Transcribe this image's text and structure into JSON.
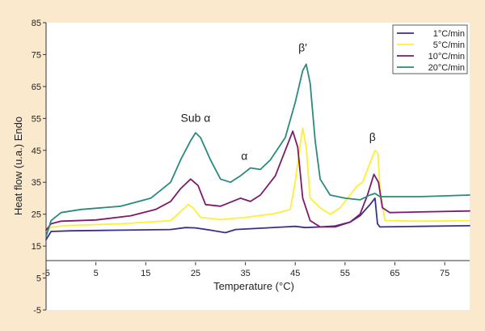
{
  "chart_data": {
    "type": "line",
    "xlabel": "Temperature (°C)",
    "ylabel": "Heat flow (u.a.) Endo",
    "xlim": [
      -5,
      80
    ],
    "ylim": [
      -5,
      85
    ],
    "x_ticks": [
      "-5",
      "5",
      "15",
      "25",
      "35",
      "45",
      "55",
      "65",
      "75"
    ],
    "y_ticks": [
      "85",
      "75",
      "65",
      "55",
      "45",
      "35",
      "25",
      "15",
      "5",
      "-5"
    ],
    "grid": false,
    "legend_position": "top-right",
    "annotations": [
      {
        "text": "Sub α",
        "x": 25,
        "y": 54
      },
      {
        "text": "α",
        "x": 34.8,
        "y": 42
      },
      {
        "text": "β′",
        "x": 46.5,
        "y": 76
      },
      {
        "text": "β",
        "x": 60.5,
        "y": 48
      }
    ],
    "series": [
      {
        "name": "1°C/min",
        "color": "#3b2f8a",
        "points": [
          [
            -5,
            17
          ],
          [
            -4,
            19.6
          ],
          [
            0,
            19.8
          ],
          [
            10,
            20
          ],
          [
            20,
            20.2
          ],
          [
            23,
            20.8
          ],
          [
            25,
            20.7
          ],
          [
            28,
            20
          ],
          [
            31,
            19.2
          ],
          [
            33,
            20.2
          ],
          [
            38,
            20.6
          ],
          [
            43,
            21
          ],
          [
            45,
            21.2
          ],
          [
            47,
            20.8
          ],
          [
            50,
            21
          ],
          [
            53,
            21.3
          ],
          [
            56,
            22.5
          ],
          [
            58,
            24.5
          ],
          [
            60,
            28
          ],
          [
            61,
            30
          ],
          [
            61.5,
            22
          ],
          [
            62,
            21
          ],
          [
            70,
            21.2
          ],
          [
            80,
            21.4
          ]
        ]
      },
      {
        "name": "5°C/min",
        "color": "#ffee33",
        "points": [
          [
            -5,
            20
          ],
          [
            -4,
            21
          ],
          [
            0,
            21.5
          ],
          [
            10,
            22
          ],
          [
            20,
            23
          ],
          [
            22.5,
            26.5
          ],
          [
            23.5,
            28
          ],
          [
            24.5,
            27
          ],
          [
            26,
            24
          ],
          [
            30,
            23.3
          ],
          [
            35,
            24
          ],
          [
            40,
            25
          ],
          [
            42,
            25.6
          ],
          [
            44,
            26.5
          ],
          [
            45,
            35
          ],
          [
            46,
            47
          ],
          [
            46.5,
            52
          ],
          [
            47.2,
            46
          ],
          [
            48,
            30
          ],
          [
            50,
            27
          ],
          [
            52,
            25
          ],
          [
            54,
            27
          ],
          [
            56,
            31
          ],
          [
            57.5,
            34
          ],
          [
            58.5,
            35
          ],
          [
            60,
            41
          ],
          [
            61,
            45
          ],
          [
            61.6,
            44
          ],
          [
            62,
            33
          ],
          [
            63,
            23
          ],
          [
            70,
            22.8
          ],
          [
            80,
            23
          ]
        ]
      },
      {
        "name": "10°C/min",
        "color": "#7d1a6e",
        "points": [
          [
            -5,
            20
          ],
          [
            -4,
            22
          ],
          [
            -2,
            22.8
          ],
          [
            5,
            23.2
          ],
          [
            12,
            24.5
          ],
          [
            17,
            26.5
          ],
          [
            20,
            29
          ],
          [
            22,
            33
          ],
          [
            24,
            36
          ],
          [
            25.5,
            34
          ],
          [
            27,
            28
          ],
          [
            30,
            27.5
          ],
          [
            34,
            30
          ],
          [
            36,
            29
          ],
          [
            38,
            31
          ],
          [
            41,
            37
          ],
          [
            43,
            45
          ],
          [
            44.5,
            51
          ],
          [
            45.5,
            46
          ],
          [
            46.5,
            30
          ],
          [
            48,
            23
          ],
          [
            50,
            21
          ],
          [
            53,
            21
          ],
          [
            56,
            22.5
          ],
          [
            58,
            25
          ],
          [
            59.5,
            31
          ],
          [
            60.8,
            37.5
          ],
          [
            61.7,
            35
          ],
          [
            62.5,
            27
          ],
          [
            64,
            25.5
          ],
          [
            70,
            25.7
          ],
          [
            80,
            26
          ]
        ]
      },
      {
        "name": "20°C/min",
        "color": "#2b8a7e",
        "points": [
          [
            -5,
            18
          ],
          [
            -4,
            23
          ],
          [
            -2,
            25.5
          ],
          [
            2,
            26.5
          ],
          [
            10,
            27.5
          ],
          [
            16,
            30
          ],
          [
            20,
            35
          ],
          [
            22,
            42
          ],
          [
            24,
            48
          ],
          [
            25,
            50.5
          ],
          [
            26,
            49
          ],
          [
            28,
            42
          ],
          [
            30,
            36
          ],
          [
            32,
            35
          ],
          [
            34,
            37
          ],
          [
            36,
            39.5
          ],
          [
            38,
            39
          ],
          [
            40,
            42
          ],
          [
            43,
            49
          ],
          [
            45,
            60
          ],
          [
            46.5,
            70
          ],
          [
            47.2,
            72
          ],
          [
            48,
            66
          ],
          [
            49,
            48
          ],
          [
            50,
            36
          ],
          [
            52,
            31
          ],
          [
            55,
            30
          ],
          [
            58,
            29.5
          ],
          [
            60,
            31
          ],
          [
            61,
            31.5
          ],
          [
            62,
            30.5
          ],
          [
            65,
            30.5
          ],
          [
            70,
            30.5
          ],
          [
            80,
            31
          ]
        ]
      }
    ]
  }
}
